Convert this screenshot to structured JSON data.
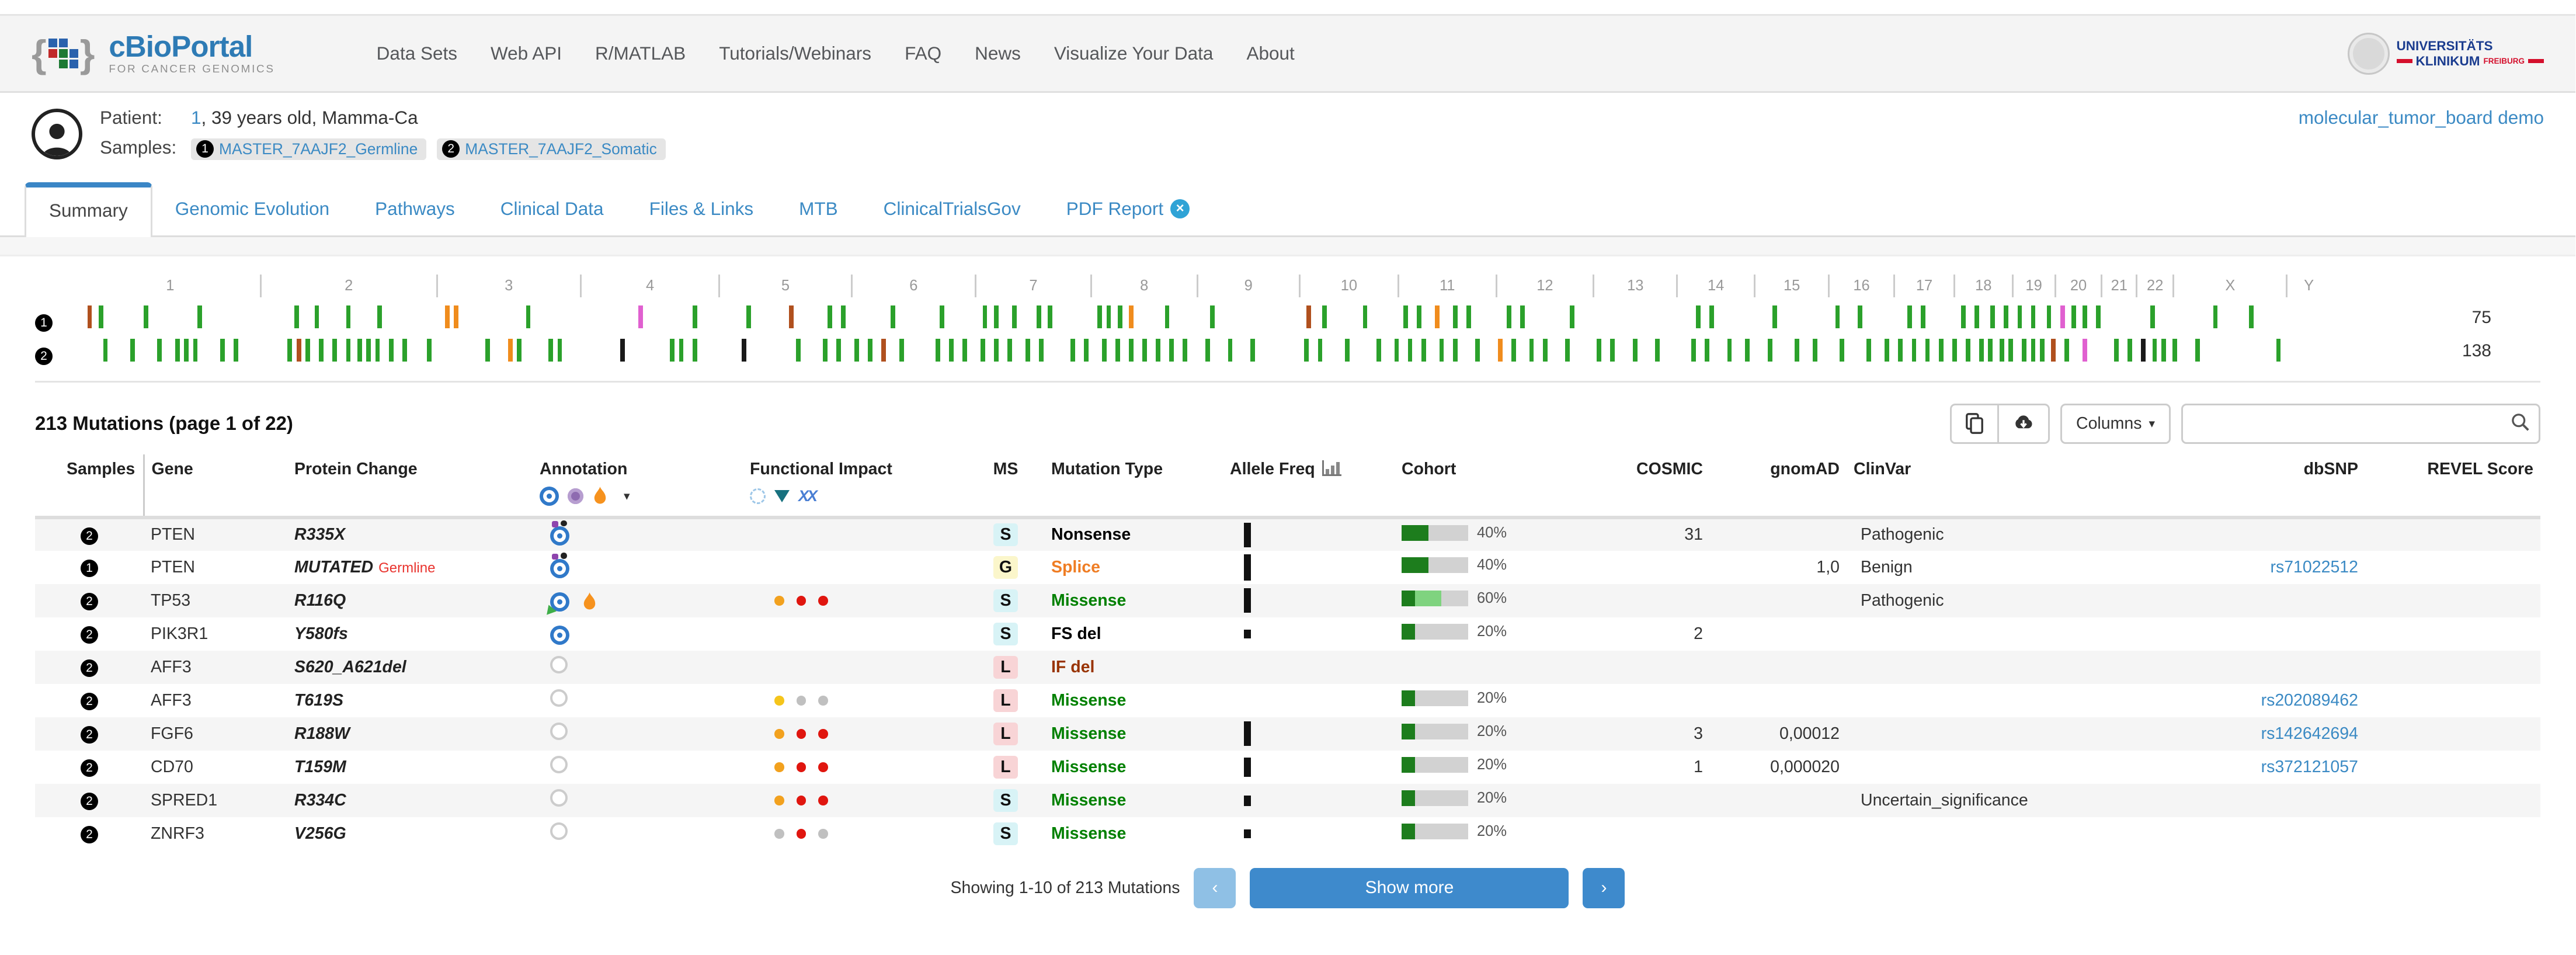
{
  "navbar": {
    "brand": "cBioPortal",
    "brand_sub": "FOR CANCER GENOMICS",
    "links": [
      "Data Sets",
      "Web API",
      "R/MATLAB",
      "Tutorials/Webinars",
      "FAQ",
      "News",
      "Visualize Your Data",
      "About"
    ],
    "org": {
      "line1": "UNIVERSITÄTS",
      "line2": "KLINIKUM",
      "sub": "FREIBURG"
    }
  },
  "patient": {
    "label": "Patient:",
    "id_link": "1",
    "info_rest": ", 39 years old, Mamma-Ca",
    "samples_label": "Samples:",
    "samples": [
      {
        "num": "1",
        "id": "MASTER_7AAJF2_Germline"
      },
      {
        "num": "2",
        "id": "MASTER_7AAJF2_Somatic"
      }
    ],
    "study_link": "molecular_tumor_board demo"
  },
  "tabs": [
    {
      "label": "Summary",
      "active": true,
      "close": false
    },
    {
      "label": "Genomic Evolution",
      "active": false,
      "close": false
    },
    {
      "label": "Pathways",
      "active": false,
      "close": false
    },
    {
      "label": "Clinical Data",
      "active": false,
      "close": false
    },
    {
      "label": "Files & Links",
      "active": false,
      "close": false
    },
    {
      "label": "MTB",
      "active": false,
      "close": false
    },
    {
      "label": "ClinicalTrialsGov",
      "active": false,
      "close": false
    },
    {
      "label": "PDF Report",
      "active": false,
      "close": true
    }
  ],
  "genome": {
    "chromosomes": [
      {
        "name": "1",
        "w": 8.04
      },
      {
        "name": "2",
        "w": 7.84
      },
      {
        "name": "3",
        "w": 6.39
      },
      {
        "name": "4",
        "w": 6.17
      },
      {
        "name": "5",
        "w": 5.87
      },
      {
        "name": "6",
        "w": 5.52
      },
      {
        "name": "7",
        "w": 5.13
      },
      {
        "name": "8",
        "w": 4.72
      },
      {
        "name": "9",
        "w": 4.55
      },
      {
        "name": "10",
        "w": 4.39
      },
      {
        "name": "11",
        "w": 4.35
      },
      {
        "name": "12",
        "w": 4.33
      },
      {
        "name": "13",
        "w": 3.71
      },
      {
        "name": "14",
        "w": 3.45
      },
      {
        "name": "15",
        "w": 3.3
      },
      {
        "name": "16",
        "w": 2.9
      },
      {
        "name": "17",
        "w": 2.68
      },
      {
        "name": "18",
        "w": 2.58
      },
      {
        "name": "19",
        "w": 1.9
      },
      {
        "name": "20",
        "w": 2.07
      },
      {
        "name": "21",
        "w": 1.55
      },
      {
        "name": "22",
        "w": 1.64
      },
      {
        "name": "X",
        "w": 5.04
      },
      {
        "name": "Y",
        "w": 1.88
      }
    ],
    "tick_colors": {
      "g": "#2ba12b",
      "o": "#f08c1d",
      "r": "#b0501e",
      "m": "#e060d0",
      "k": "#1a1a1a"
    },
    "tracks": [
      {
        "sample": "1",
        "count": "75",
        "ticks": "0.3:r,0.8:g,2.8:g,5.2:g,9.5:g,10.4:g,11.8:g,13.2:g,16.2:o,16.6:o,19.8:g,24.8:m,27.2:g,29.6:g,31.5:r,33.2:g,33.8:g,36.0:g,38.2:g,40.1:g,40.6:g,41.4:g,42.5:g,43.0:g,45.2:g,45.6:g,46.1:g,46.6:o,48.2:g,50.2:g,54.5:r,55.2:g,57.0:g,58.8:g,59.4:g,60.2:o,61.0:g,61.6:g,63.4:g,64.0:g,66.2:g,71.8:g,72.4:g,75.2:g,78.0:g,79.0:g,81.2:g,81.8:g,83.6:g,84.2:g,84.9:g,85.5:g,86.1:g,86.7:g,87.4:g,88.0:m,88.5:g,89.0:g,89.6:g,92.0:g,94.8:g,96.4:g"
      },
      {
        "sample": "2",
        "count": "138",
        "ticks": "1.0:g,2.2:g,3.4:g,4.2:g,4.6:g,5.0:g,6.2:g,6.8:g,9.2:g,9.6:r,10.0:g,10.6:g,11.2:g,11.8:g,12.3:g,12.7:g,13.1:g,13.7:g,14.3:g,15.4:g,18.0:g,19.0:o,19.4:g,20.8:g,21.2:g,24.0:k,26.2:g,26.6:g,27.2:g,29.4:k,31.8:g,33.0:g,33.6:g,34.4:g,35.0:g,35.6:r,36.4:g,38.0:g,38.6:g,39.2:g,40.0:g,40.6:g,41.2:g,42.0:g,42.6:g,44.0:g,44.6:g,45.4:g,46.0:g,46.6:g,47.2:g,47.8:g,48.4:g,49.0:g,50.0:g,51.0:g,52.0:g,54.4:g,55.0:g,56.2:g,57.6:g,58.4:g,59.0:g,59.6:g,60.4:g,61.0:g,62.0:g,63.0:o,63.6:g,64.4:g,65.0:g,66.0:g,67.4:g,68.0:g,69.0:g,70.0:g,71.6:g,72.2:g,73.2:g,74.0:g,75.0:g,76.2:g,77.0:g,78.2:g,79.4:g,80.2:g,80.8:g,81.4:g,82.0:g,82.6:g,83.2:g,83.8:g,84.4:g,84.8:g,85.3:g,85.7:g,86.3:g,86.7:g,87.1:g,87.6:r,88.2:g,89.0:m,90.4:g,91.0:g,91.6:k,92.1:g,92.5:g,93.0:g,94.0:g,97.6:g"
      }
    ]
  },
  "mutations": {
    "title": "213 Mutations (page 1 of 22)",
    "toolbar": {
      "columns_label": "Columns",
      "search_value": ""
    },
    "table": {
      "headers": [
        {
          "key": "samples",
          "label": "Samples"
        },
        {
          "key": "gene",
          "label": "Gene"
        },
        {
          "key": "protein",
          "label": "Protein Change"
        },
        {
          "key": "annotation",
          "label": "Annotation"
        },
        {
          "key": "fi",
          "label": "Functional Impact"
        },
        {
          "key": "ms",
          "label": "MS"
        },
        {
          "key": "mtype",
          "label": "Mutation Type"
        },
        {
          "key": "af",
          "label": "Allele Freq"
        },
        {
          "key": "cohort",
          "label": "Cohort"
        },
        {
          "key": "cosmic",
          "label": "COSMIC"
        },
        {
          "key": "gnomad",
          "label": "gnomAD"
        },
        {
          "key": "clinvar",
          "label": "ClinVar"
        },
        {
          "key": "dbsnp",
          "label": "dbSNP"
        },
        {
          "key": "revel",
          "label": "REVEL Score"
        }
      ]
    },
    "rows": [
      {
        "sample": "2",
        "gene": "PTEN",
        "protein": "R335X",
        "germline": "",
        "annotation": "oncokb-dots",
        "fi": [],
        "ms": "S",
        "ms_class": "s",
        "mtype": "Nonsense",
        "mcolor": "#000000",
        "af_h": 14,
        "cohort": [
          [
            "#1d7d1d",
            40
          ]
        ],
        "cohort_label": "40%",
        "cosmic": "31",
        "gnomad": "",
        "clinvar": "Pathogenic",
        "dbsnp": "",
        "revel": ""
      },
      {
        "sample": "1",
        "gene": "PTEN",
        "protein": "MUTATED",
        "germline": "Germline",
        "annotation": "oncokb-dots",
        "fi": [],
        "ms": "G",
        "ms_class": "g",
        "mtype": "Splice",
        "mcolor": "#ef7d24",
        "af_h": 15,
        "cohort": [
          [
            "#1d7d1d",
            40
          ]
        ],
        "cohort_label": "40%",
        "cosmic": "",
        "gnomad": "1,0",
        "clinvar": "Benign",
        "dbsnp": "rs71022512",
        "revel": ""
      },
      {
        "sample": "2",
        "gene": "TP53",
        "protein": "R116Q",
        "germline": "",
        "annotation": "oncokb-flame",
        "fi": [
          "#f2a11e",
          "#e0160f",
          "#e0160f"
        ],
        "ms": "S",
        "ms_class": "s",
        "mtype": "Missense",
        "mcolor": "#008000",
        "af_h": 14,
        "cohort": [
          [
            "#1d7d1d",
            20
          ],
          [
            "#7fd37f",
            40
          ]
        ],
        "cohort_label": "60%",
        "cosmic": "",
        "gnomad": "",
        "clinvar": "Pathogenic",
        "dbsnp": "",
        "revel": ""
      },
      {
        "sample": "2",
        "gene": "PIK3R1",
        "protein": "Y580fs",
        "germline": "",
        "annotation": "oncokb",
        "fi": [],
        "ms": "S",
        "ms_class": "s",
        "mtype": "FS del",
        "mcolor": "#000000",
        "af_h": 5,
        "cohort": [
          [
            "#1d7d1d",
            20
          ]
        ],
        "cohort_label": "20%",
        "cosmic": "2",
        "gnomad": "",
        "clinvar": "",
        "dbsnp": "",
        "revel": ""
      },
      {
        "sample": "2",
        "gene": "AFF3",
        "protein": "S620_A621del",
        "germline": "",
        "annotation": "unknown",
        "fi": [],
        "ms": "L",
        "ms_class": "l",
        "mtype": "IF del",
        "mcolor": "#993404",
        "af_h": 0,
        "cohort": [],
        "cohort_label": "",
        "cosmic": "",
        "gnomad": "",
        "clinvar": "",
        "dbsnp": "",
        "revel": ""
      },
      {
        "sample": "2",
        "gene": "AFF3",
        "protein": "T619S",
        "germline": "",
        "annotation": "unknown",
        "fi": [
          "#f5c51b",
          "#c0c0c0",
          "#c0c0c0"
        ],
        "ms": "L",
        "ms_class": "l",
        "mtype": "Missense",
        "mcolor": "#008000",
        "af_h": 0,
        "cohort": [
          [
            "#1d7d1d",
            20
          ]
        ],
        "cohort_label": "20%",
        "cosmic": "",
        "gnomad": "",
        "clinvar": "",
        "dbsnp": "rs202089462",
        "revel": ""
      },
      {
        "sample": "2",
        "gene": "FGF6",
        "protein": "R188W",
        "germline": "",
        "annotation": "unknown",
        "fi": [
          "#f2a11e",
          "#e0160f",
          "#e0160f"
        ],
        "ms": "L",
        "ms_class": "l",
        "mtype": "Missense",
        "mcolor": "#008000",
        "af_h": 14,
        "cohort": [
          [
            "#1d7d1d",
            20
          ]
        ],
        "cohort_label": "20%",
        "cosmic": "3",
        "gnomad": "0,00012",
        "clinvar": "",
        "dbsnp": "rs142642694",
        "revel": ""
      },
      {
        "sample": "2",
        "gene": "CD70",
        "protein": "T159M",
        "germline": "",
        "annotation": "unknown",
        "fi": [
          "#f2a11e",
          "#e0160f",
          "#e0160f"
        ],
        "ms": "L",
        "ms_class": "l",
        "mtype": "Missense",
        "mcolor": "#008000",
        "af_h": 11,
        "cohort": [
          [
            "#1d7d1d",
            20
          ]
        ],
        "cohort_label": "20%",
        "cosmic": "1",
        "gnomad": "0,000020",
        "clinvar": "",
        "dbsnp": "rs372121057",
        "revel": ""
      },
      {
        "sample": "2",
        "gene": "SPRED1",
        "protein": "R334C",
        "germline": "",
        "annotation": "unknown",
        "fi": [
          "#f2a11e",
          "#e0160f",
          "#e0160f"
        ],
        "ms": "S",
        "ms_class": "s",
        "mtype": "Missense",
        "mcolor": "#008000",
        "af_h": 6,
        "cohort": [
          [
            "#1d7d1d",
            20
          ]
        ],
        "cohort_label": "20%",
        "cosmic": "",
        "gnomad": "",
        "clinvar": "Uncertain_significance",
        "dbsnp": "",
        "revel": ""
      },
      {
        "sample": "2",
        "gene": "ZNRF3",
        "protein": "V256G",
        "germline": "",
        "annotation": "unknown",
        "fi": [
          "#c0c0c0",
          "#e0160f",
          "#c0c0c0"
        ],
        "ms": "S",
        "ms_class": "s",
        "mtype": "Missense",
        "mcolor": "#008000",
        "af_h": 5,
        "cohort": [
          [
            "#1d7d1d",
            20
          ]
        ],
        "cohort_label": "20%",
        "cosmic": "",
        "gnomad": "",
        "clinvar": "",
        "dbsnp": "",
        "revel": ""
      }
    ],
    "footer": {
      "showing": "Showing 1-10 of 213 Mutations",
      "prev": "‹",
      "show_more": "Show more",
      "next": "›"
    }
  },
  "glyphs": {
    "caret_down": "▾",
    "close": "×",
    "search_icon": "magnifier",
    "copy_icon": "clipboard",
    "download_icon": "cloud-download",
    "allele_freq_icon": "bar-chart"
  }
}
